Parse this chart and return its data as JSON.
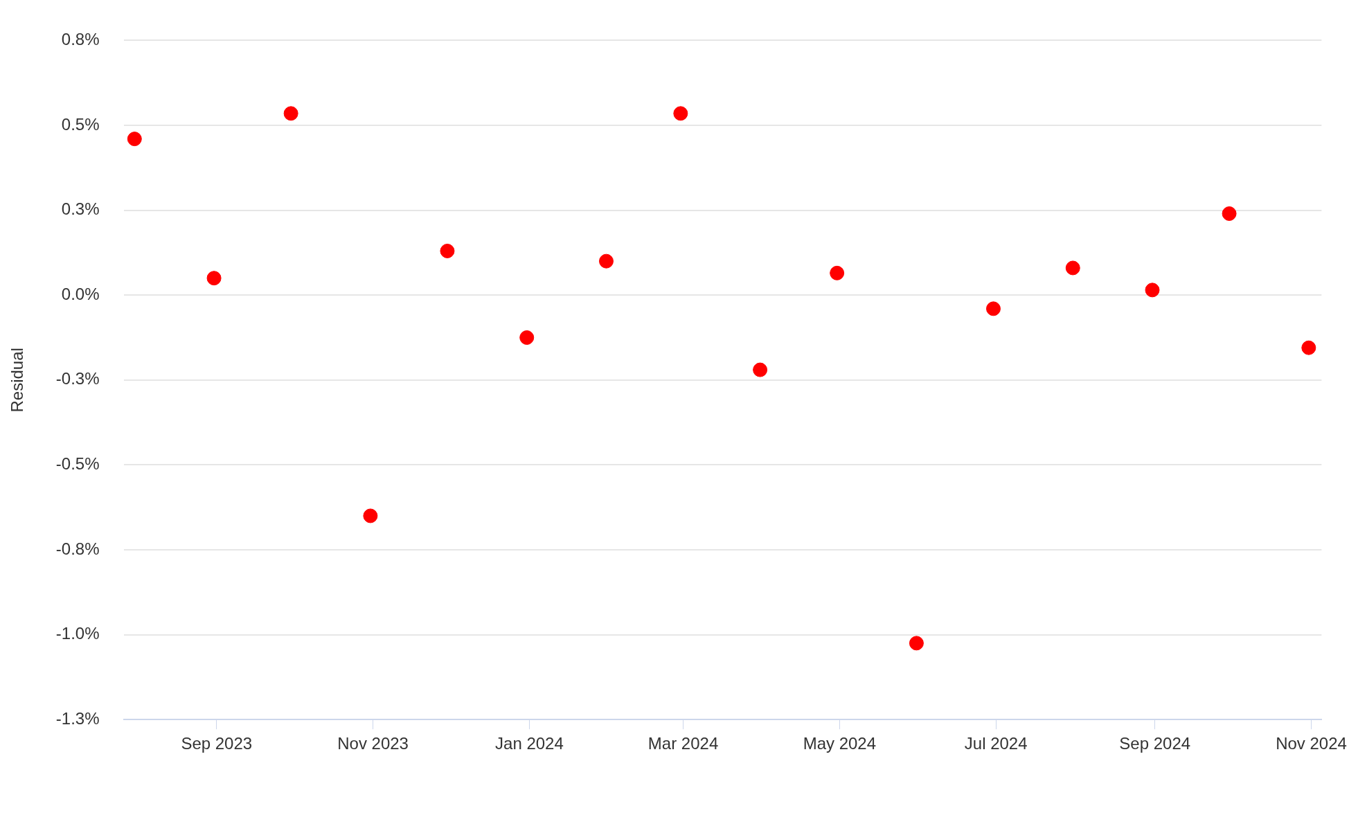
{
  "chart_data": {
    "type": "scatter",
    "ylabel": "Residual",
    "x": [
      "2023-07-31",
      "2023-08-31",
      "2023-09-30",
      "2023-10-31",
      "2023-11-30",
      "2023-12-31",
      "2024-01-31",
      "2024-02-29",
      "2024-03-31",
      "2024-04-30",
      "2024-05-31",
      "2024-06-30",
      "2024-07-31",
      "2024-08-31",
      "2024-09-30",
      "2024-10-31"
    ],
    "series": [
      {
        "color": "#ff0000",
        "values": [
          0.46,
          0.05,
          0.535,
          -0.65,
          0.13,
          -0.125,
          0.1,
          0.535,
          -0.22,
          0.065,
          -1.025,
          -0.04,
          0.08,
          0.015,
          0.24,
          -0.155
        ]
      }
    ],
    "xlim": [
      "2023-07-27",
      "2024-11-05"
    ],
    "xticks": [
      {
        "value": "2023-09-01",
        "label": "Sep 2023"
      },
      {
        "value": "2023-11-01",
        "label": "Nov 2023"
      },
      {
        "value": "2024-01-01",
        "label": "Jan 2024"
      },
      {
        "value": "2024-03-01",
        "label": "Mar 2024"
      },
      {
        "value": "2024-05-01",
        "label": "May 2024"
      },
      {
        "value": "2024-07-01",
        "label": "Jul 2024"
      },
      {
        "value": "2024-09-01",
        "label": "Sep 2024"
      },
      {
        "value": "2024-11-01",
        "label": "Nov 2024"
      }
    ],
    "ylim": [
      -1.25,
      0.75
    ],
    "yticks": [
      {
        "value": 0.75,
        "label": "0.8%"
      },
      {
        "value": 0.5,
        "label": "0.5%"
      },
      {
        "value": 0.25,
        "label": "0.3%"
      },
      {
        "value": 0,
        "label": "0.0%"
      },
      {
        "value": -0.25,
        "label": "-0.3%"
      },
      {
        "value": -0.5,
        "label": "-0.5%"
      },
      {
        "value": -0.75,
        "label": "-0.8%"
      },
      {
        "value": -1,
        "label": "-1.0%"
      },
      {
        "value": -1.25,
        "label": "-1.3%"
      }
    ],
    "grid": "y",
    "marker": "circle"
  }
}
